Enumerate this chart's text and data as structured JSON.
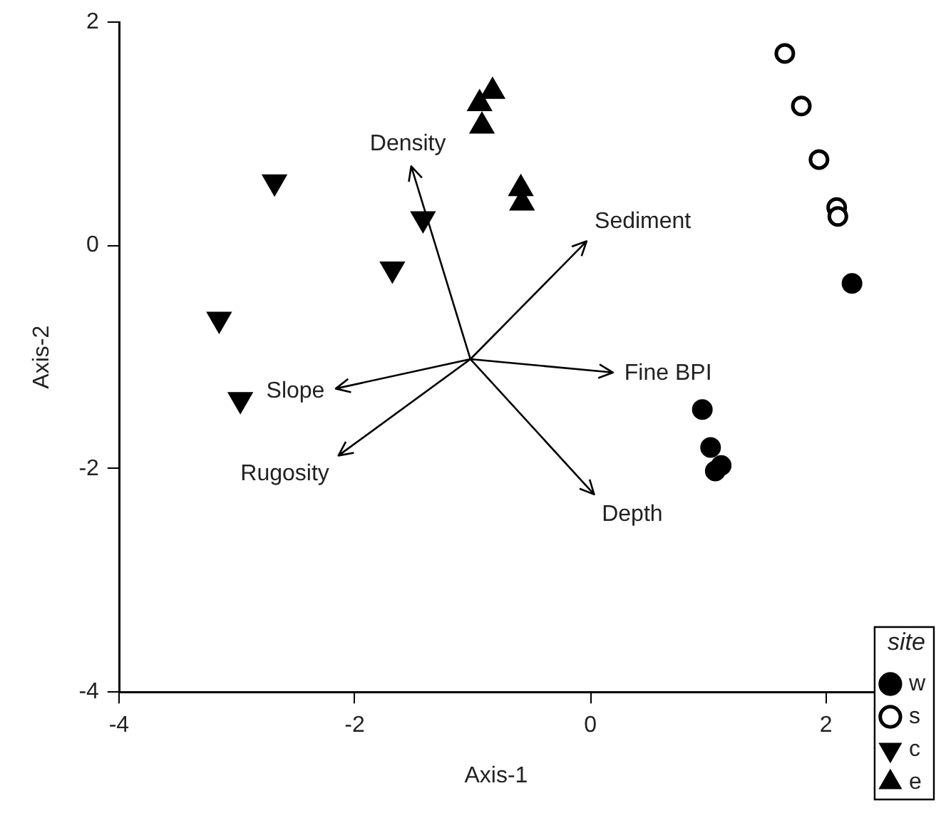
{
  "chart_data": {
    "type": "scatter",
    "xlabel": "Axis-1",
    "ylabel": "Axis-2",
    "legend_title": "site",
    "legend": "bottom right",
    "grid": false,
    "xlim": [
      -4,
      2.4
    ],
    "ylim": [
      -4,
      2
    ],
    "xticks": [
      -4,
      -2,
      0,
      2
    ],
    "yticks": [
      -4,
      -2,
      0,
      2
    ],
    "series": [
      {
        "name": "w",
        "color": "#000000",
        "marker": "circle",
        "x": [
          2.22,
          0.95,
          1.02,
          1.11,
          1.06
        ],
        "values": [
          -0.34,
          -1.47,
          -1.81,
          -1.97,
          -2.02
        ]
      },
      {
        "name": "s",
        "color": "#000000",
        "marker": "circle-open",
        "x": [
          1.65,
          1.79,
          1.94,
          2.09,
          2.1
        ],
        "values": [
          1.72,
          1.25,
          0.77,
          0.34,
          0.26
        ]
      },
      {
        "name": "c",
        "color": "#000000",
        "marker": "triangle-down",
        "x": [
          -2.68,
          -1.42,
          -1.68,
          -3.15,
          -2.97
        ],
        "values": [
          0.57,
          0.24,
          -0.21,
          -0.66,
          -1.38
        ]
      },
      {
        "name": "e",
        "color": "#000000",
        "marker": "triangle",
        "x": [
          -0.83,
          -0.94,
          -0.92,
          -0.59,
          -0.58
        ],
        "values": [
          1.38,
          1.27,
          1.07,
          0.51,
          0.38
        ]
      }
    ],
    "annotations": [
      "Density",
      "Sediment",
      "Fine BPI",
      "Slope",
      "Rugosity",
      "Depth"
    ]
  }
}
